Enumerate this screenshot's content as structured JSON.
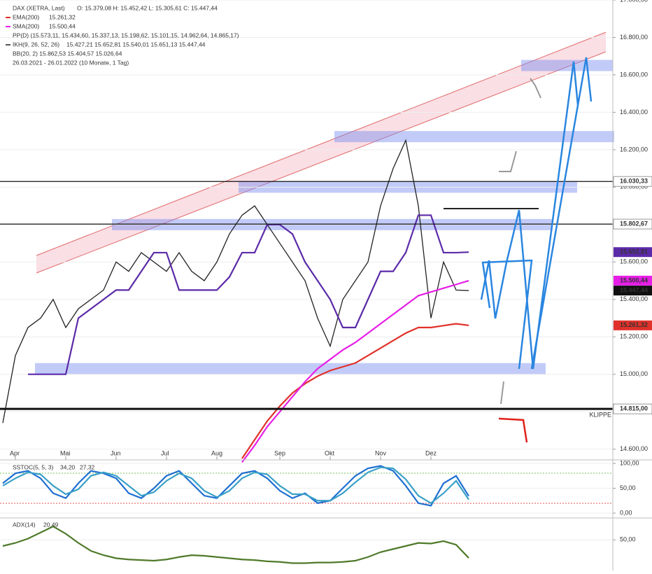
{
  "chart_data": [
    {
      "type": "line",
      "title": "DAX (XETRA, Last)",
      "subtitle": "O: 15.379,08  H: 15.452,42  L: 15.305,61  C: 15.447,44",
      "date_range": "26.03.2021 - 26.01.2022  (10 Monate, 1 Tag)",
      "extra_legend": [
        "PP(D)  (15.573,11, 15.434,60, 15.337,13, 15.198,62, 15.101,15, 14.962,64, 14.865,17)",
        "BB(20, 2)  15.862,53  15.404,57  15.026,64"
      ],
      "categories": [
        null,
        "Apr",
        null,
        null,
        null,
        "Mai",
        null,
        null,
        null,
        "Jun",
        null,
        null,
        null,
        "Jul",
        null,
        null,
        null,
        "Aug",
        null,
        null,
        null,
        null,
        "Sep",
        null,
        null,
        null,
        "Okt",
        null,
        null,
        null,
        "Nov",
        null,
        null,
        null,
        "Dez",
        null,
        null,
        null
      ],
      "series": [
        {
          "name": "DAX (XETRA, Last)",
          "color": "#222222",
          "legend_text": "",
          "values": [
            14740,
            15100,
            15250,
            15300,
            15400,
            15250,
            15350,
            15400,
            15450,
            15600,
            15550,
            15650,
            15600,
            15550,
            15650,
            15550,
            15500,
            15600,
            15750,
            15850,
            15900,
            15800,
            15700,
            15600,
            15500,
            15300,
            15150,
            15400,
            15500,
            15600,
            15900,
            16100,
            16250,
            15900,
            15300,
            15600,
            15450,
            15447.44
          ],
          "last_label": {
            "value": 15447.44,
            "label": "15.447,44"
          },
          "label_bg": "#111111"
        },
        {
          "name": "EMA(200)",
          "color": "#e0312a",
          "legend_text": "15.261,32",
          "values": [
            null,
            null,
            null,
            null,
            null,
            null,
            null,
            null,
            null,
            null,
            null,
            null,
            null,
            null,
            null,
            null,
            null,
            null,
            null,
            14550,
            14650,
            14750,
            14830,
            14900,
            14950,
            14990,
            15020,
            15040,
            15060,
            15100,
            15140,
            15180,
            15220,
            15250,
            15250,
            15260,
            15270,
            15261.32
          ],
          "last_label": {
            "value": 15261.32,
            "label": "15.261,32"
          },
          "label_bg": "#e0312a"
        },
        {
          "name": "SMA(200)",
          "color": "#e61ee6",
          "legend_text": "15.500,44",
          "values": [
            null,
            null,
            null,
            null,
            null,
            null,
            null,
            null,
            null,
            null,
            null,
            null,
            null,
            null,
            null,
            null,
            null,
            null,
            null,
            14530,
            14620,
            14720,
            14800,
            14880,
            14960,
            15030,
            15080,
            15130,
            15170,
            15220,
            15270,
            15320,
            15370,
            15420,
            15440,
            15460,
            15480,
            15500.44
          ],
          "last_label": {
            "value": 15500.44,
            "label": "15.500,44"
          },
          "label_bg": "#e61ee6"
        },
        {
          "name": "IKH(9, 26, 52, 26)",
          "color": "#5b2aa8",
          "legend_text": "15.427,21  15.652,81  15.540,01  15.651,13  15.447,44",
          "values": [
            null,
            null,
            15000,
            15000,
            15000,
            15000,
            15300,
            15350,
            15400,
            15450,
            15450,
            15550,
            15650,
            15650,
            15450,
            15450,
            15450,
            15450,
            15520,
            15650,
            15650,
            15800,
            15800,
            15750,
            15600,
            15500,
            15400,
            15250,
            15250,
            15400,
            15550,
            15550,
            15650,
            15850,
            15850,
            15650,
            15650,
            15652.81
          ],
          "last_label": {
            "value": 15652.81,
            "label": "15.652,81"
          },
          "label_bg": "#5b2aa8"
        }
      ],
      "levels": [
        {
          "value": 16030.33,
          "label": "16.030,33"
        },
        {
          "value": 15802.67,
          "label": "15.802,67"
        },
        {
          "value": 14815,
          "label": "14.815,00",
          "name": "KLIPPE"
        }
      ],
      "zones": [
        16650,
        16270,
        16000,
        15800,
        15030
      ],
      "ylim": [
        14550,
        17000
      ],
      "yticks": [
        {
          "value": 17000,
          "label": "17.000,00"
        },
        {
          "value": 16800,
          "label": "16.800,00"
        },
        {
          "value": 16600,
          "label": "16.600,00"
        },
        {
          "value": 16400,
          "label": "16.400,00"
        },
        {
          "value": 16200,
          "label": "16.200,00"
        },
        {
          "value": 16000,
          "label": "16.000,00"
        },
        {
          "value": 15800,
          "label": "15.800,00"
        },
        {
          "value": 15600,
          "label": "15.600,00"
        },
        {
          "value": 15400,
          "label": "15.400,00"
        },
        {
          "value": 15200,
          "label": "15.200,00"
        },
        {
          "value": 15000,
          "label": "15.000,00"
        },
        {
          "value": 14800,
          "label": "14.800,00"
        },
        {
          "value": 14600,
          "label": "14.600,00"
        }
      ]
    },
    {
      "type": "line",
      "title": "SSTOC(5, 5, 3)",
      "series": [
        {
          "color": "#1f6fd1",
          "value_label": "34,20",
          "values": [
            60,
            80,
            85,
            70,
            40,
            30,
            60,
            85,
            80,
            70,
            40,
            30,
            50,
            75,
            85,
            60,
            35,
            30,
            55,
            80,
            85,
            70,
            45,
            30,
            40,
            20,
            25,
            50,
            75,
            90,
            95,
            85,
            55,
            20,
            15,
            60,
            75,
            34.2
          ]
        },
        {
          "color": "#3aa0c8",
          "value_label": "27,32",
          "values": [
            55,
            70,
            82,
            78,
            55,
            38,
            48,
            75,
            82,
            75,
            55,
            35,
            42,
            65,
            80,
            70,
            45,
            32,
            45,
            70,
            82,
            78,
            55,
            38,
            38,
            25,
            25,
            40,
            62,
            82,
            92,
            90,
            68,
            35,
            20,
            40,
            65,
            27.32
          ]
        }
      ],
      "ylim": [
        0,
        100
      ],
      "yticks": [
        {
          "value": 100,
          "label": "100,00"
        },
        {
          "value": 50,
          "label": "50,00"
        },
        {
          "value": 0,
          "label": "0,00"
        }
      ]
    },
    {
      "type": "line",
      "title": "ADX(14)",
      "series": [
        {
          "color": "#4f7a2a",
          "value_label": "20,49",
          "values": [
            40,
            45,
            52,
            62,
            72,
            60,
            45,
            32,
            25,
            20,
            18,
            17,
            16,
            18,
            22,
            25,
            24,
            22,
            20,
            18,
            17,
            15,
            14,
            12,
            12,
            13,
            13,
            14,
            16,
            22,
            30,
            35,
            40,
            45,
            44,
            48,
            42,
            20.49
          ]
        }
      ],
      "ylim": [
        0,
        80
      ],
      "yticks": [
        {
          "value": 50,
          "label": "50,00"
        }
      ]
    }
  ]
}
